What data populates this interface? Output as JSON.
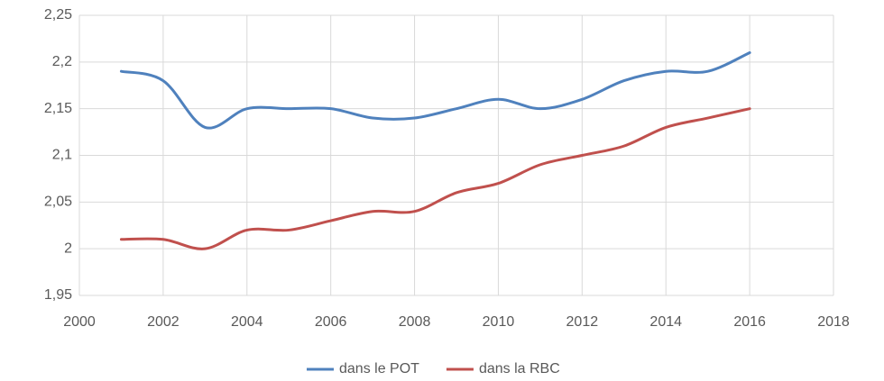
{
  "chart_data": {
    "type": "line",
    "x": [
      2001,
      2002,
      2003,
      2004,
      2005,
      2006,
      2007,
      2008,
      2009,
      2010,
      2011,
      2012,
      2013,
      2014,
      2015,
      2016
    ],
    "series": [
      {
        "name": "dans le POT",
        "color": "#4f81bd",
        "values": [
          2.19,
          2.18,
          2.13,
          2.15,
          2.15,
          2.15,
          2.14,
          2.14,
          2.15,
          2.16,
          2.15,
          2.16,
          2.18,
          2.19,
          2.19,
          2.21
        ]
      },
      {
        "name": "dans la RBC",
        "color": "#c0504d",
        "values": [
          2.01,
          2.01,
          2.0,
          2.02,
          2.02,
          2.03,
          2.04,
          2.04,
          2.06,
          2.07,
          2.09,
          2.1,
          2.11,
          2.13,
          2.14,
          2.15
        ]
      }
    ],
    "xlim": [
      2000,
      2018
    ],
    "xticks": [
      2000,
      2002,
      2004,
      2006,
      2008,
      2010,
      2012,
      2014,
      2016,
      2018
    ],
    "ylim": [
      1.95,
      2.25
    ],
    "yticks": [
      {
        "value": 1.95,
        "label": "1,95"
      },
      2,
      {
        "value": 2.05,
        "label": "2,05"
      },
      {
        "value": 2.1,
        "label": "2,1"
      },
      {
        "value": 2.15,
        "label": "2,15"
      },
      {
        "value": 2.2,
        "label": "2,2"
      },
      {
        "value": 2.25,
        "label": "2,25"
      }
    ],
    "grid": true,
    "smooth": true,
    "legend": "bottom"
  }
}
